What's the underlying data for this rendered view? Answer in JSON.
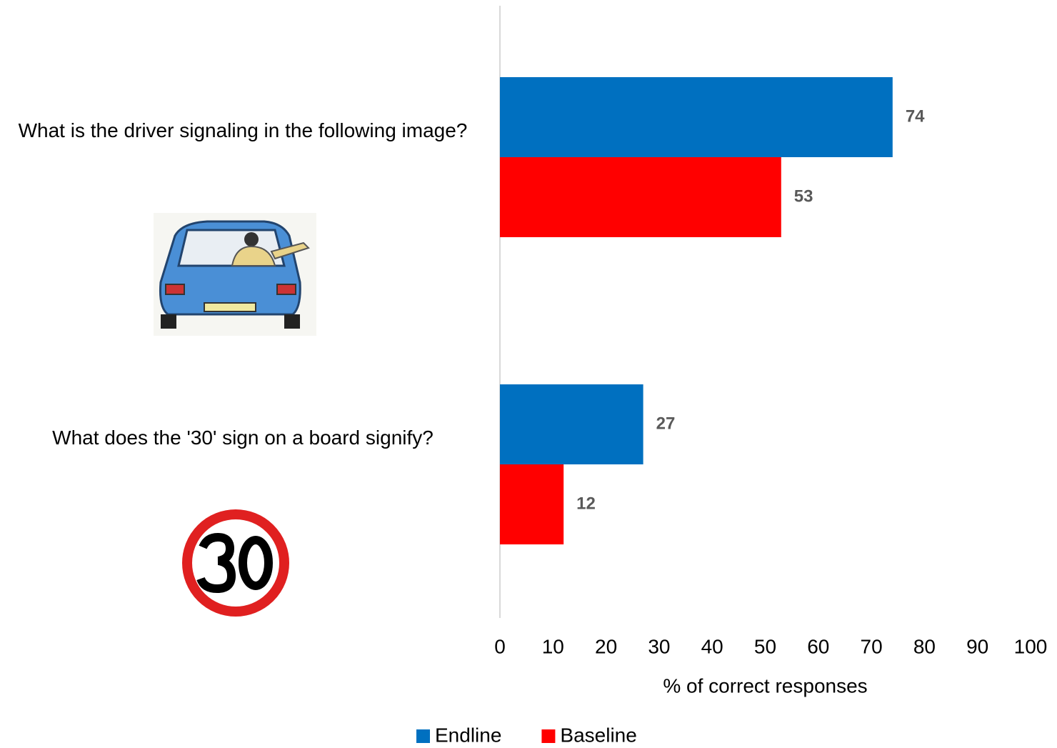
{
  "chart_data": {
    "type": "hbar",
    "categories": [
      "What is the driver signaling in the following image?",
      "What does the '30' sign on a board signify?"
    ],
    "series": [
      {
        "name": "Endline",
        "color": "#0070c0",
        "values": [
          74,
          27
        ]
      },
      {
        "name": "Baseline",
        "color": "#ff0000",
        "values": [
          53,
          12
        ]
      }
    ],
    "xlim": [
      0,
      100
    ],
    "xticks": [
      0,
      10,
      20,
      30,
      40,
      50,
      60,
      70,
      80,
      90,
      100
    ],
    "xlabel": "% of correct responses",
    "legend": "bottom"
  }
}
